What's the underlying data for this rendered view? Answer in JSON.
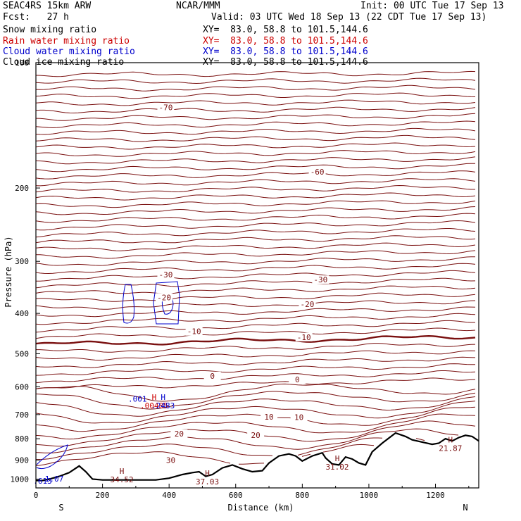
{
  "header": {
    "model": "SEAC4RS 15km ARW",
    "org": "NCAR/MMM",
    "init": "Init: 00 UTC Tue 17 Sep 13",
    "fcst": "Fcst:   27 h",
    "valid": "Valid: 03 UTC Wed 18 Sep 13 (22 CDT Tue 17 Sep 13)"
  },
  "fields": [
    {
      "name": "Snow mixing ratio",
      "xy": "XY=  83.0, 58.8 to 101.5,144.6",
      "color": "#000000"
    },
    {
      "name": "Rain water mixing ratio",
      "xy": "XY=  83.0, 58.8 to 101.5,144.6",
      "color": "#cc0000"
    },
    {
      "name": "Cloud water mixing ratio",
      "xy": "XY=  83.0, 58.8 to 101.5,144.6",
      "color": "#0000cc"
    },
    {
      "name": "Cloud ice mixing ratio",
      "xy": "XY=  83.0, 58.8 to 101.5,144.6",
      "color": "#000000"
    }
  ],
  "colors": {
    "temperature_contour": "#7a1010",
    "cloud_water": "#0000cc",
    "terrain": "#000000"
  },
  "chart_data": {
    "type": "cross-section",
    "xlabel": "Distance (km)",
    "ylabel": "Pressure (hPa)",
    "xlim": [
      0,
      1330
    ],
    "ylim": [
      1050,
      100
    ],
    "y_scale": "log",
    "x_ticks": [
      0,
      200,
      400,
      600,
      800,
      1000,
      1200
    ],
    "x_tick_labels": [
      "0",
      "200",
      "400",
      "600",
      "800",
      "1000",
      "1200"
    ],
    "y_ticks": [
      100,
      200,
      300,
      400,
      500,
      600,
      700,
      800,
      900,
      1000
    ],
    "y_tick_labels": [
      "100",
      "200",
      "300",
      "400",
      "500",
      "600",
      "700",
      "800",
      "900",
      "1000"
    ],
    "endpoint_labels": {
      "left": "S",
      "right": "N"
    },
    "contour_levels": [
      -74,
      -72,
      -70,
      -68,
      -66,
      -64,
      -62,
      -60,
      -58,
      -56,
      -54,
      -52,
      -50,
      -48,
      -46,
      -44,
      -42,
      -40,
      -38,
      -36,
      -34,
      -32,
      -30,
      -28,
      -26,
      -24,
      -22,
      -20,
      -18,
      -16,
      -14,
      -12,
      -10,
      -8,
      -6,
      -4,
      -2,
      0,
      2,
      4,
      6,
      8,
      10,
      12,
      14,
      16,
      18,
      20,
      22,
      24,
      26,
      28,
      30,
      32
    ],
    "contour_labels": [
      {
        "text": "-70",
        "x": 390,
        "p": 128
      },
      {
        "text": "-60",
        "x": 845,
        "p": 183
      },
      {
        "text": "-30",
        "x": 390,
        "p": 323
      },
      {
        "text": "-30",
        "x": 855,
        "p": 332
      },
      {
        "text": "-20",
        "x": 385,
        "p": 366
      },
      {
        "text": "-20",
        "x": 815,
        "p": 380
      },
      {
        "text": "-10",
        "x": 475,
        "p": 442
      },
      {
        "text": "-10",
        "x": 805,
        "p": 456
      },
      {
        "text": "0",
        "x": 530,
        "p": 565
      },
      {
        "text": "0",
        "x": 785,
        "p": 577
      },
      {
        "text": "10",
        "x": 700,
        "p": 708
      },
      {
        "text": "10",
        "x": 790,
        "p": 710
      },
      {
        "text": "20",
        "x": 430,
        "p": 778
      },
      {
        "text": "20",
        "x": 660,
        "p": 784
      },
      {
        "text": "30",
        "x": 405,
        "p": 900
      }
    ],
    "highs": [
      {
        "label": "H",
        "value": "34.52",
        "x": 258,
        "p": 972,
        "color": "#7a1010"
      },
      {
        "label": "H",
        "value": "37.03",
        "x": 515,
        "p": 983,
        "color": "#7a1010"
      },
      {
        "label": "H",
        "value": "31.02",
        "x": 905,
        "p": 906,
        "color": "#7a1010"
      },
      {
        "label": "H",
        "value": "21.87",
        "x": 1245,
        "p": 817,
        "color": "#7a1010"
      },
      {
        "label": "H",
        "value": ".00485",
        "x": 355,
        "p": 645,
        "color": "#cc0000"
      },
      {
        "label": "H",
        "value": ".2483",
        "x": 382,
        "p": 645,
        "color": "#0000cc"
      }
    ],
    "cloud_water_labels": [
      {
        "text": ".001",
        "x": 305,
        "p": 642
      },
      {
        "text": ".613",
        "x": 20,
        "p": 1010
      },
      {
        "text": "1.07",
        "x": 55,
        "p": 998
      }
    ],
    "terrain": {
      "x": [
        0,
        20,
        40,
        70,
        100,
        130,
        150,
        170,
        200,
        240,
        280,
        320,
        360,
        400,
        440,
        470,
        490,
        510,
        530,
        560,
        590,
        620,
        650,
        680,
        700,
        730,
        760,
        780,
        800,
        830,
        860,
        870,
        890,
        910,
        930,
        950,
        970,
        990,
        1010,
        1040,
        1080,
        1110,
        1130,
        1160,
        1190,
        1210,
        1230,
        1250,
        1270,
        1290,
        1310,
        1330
      ],
      "p": [
        1008,
        1008,
        1000,
        985,
        965,
        930,
        960,
        1000,
        1005,
        1005,
        1005,
        1005,
        1005,
        995,
        975,
        965,
        960,
        985,
        975,
        940,
        925,
        945,
        960,
        955,
        915,
        880,
        870,
        880,
        905,
        880,
        865,
        890,
        920,
        925,
        885,
        895,
        915,
        925,
        860,
        820,
        775,
        790,
        805,
        815,
        825,
        820,
        800,
        810,
        795,
        785,
        790,
        810
      ]
    }
  }
}
